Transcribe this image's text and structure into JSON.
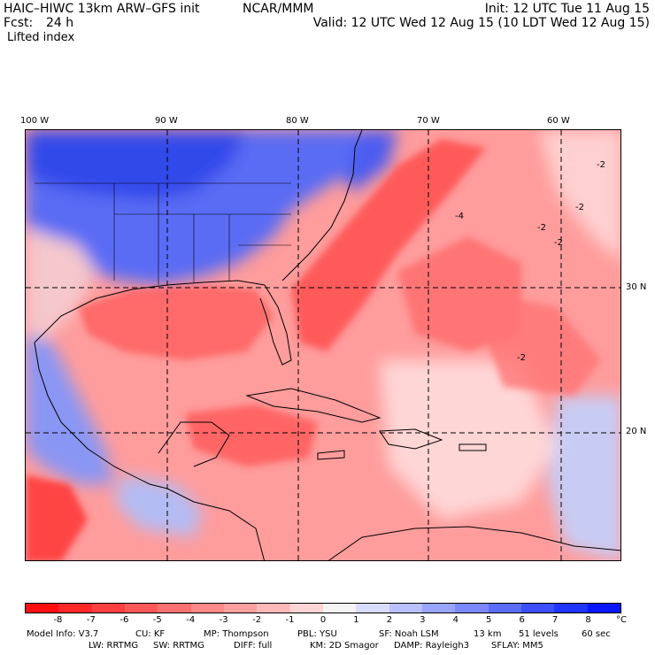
{
  "header": {
    "model_title": "HAIC–HIWC 13km ARW–GFS init",
    "org": "NCAR/MMM",
    "init": "Init: 12 UTC Tue 11 Aug 15",
    "fcst_label": "Fcst:",
    "fcst_value": "24 h",
    "valid": "Valid: 12 UTC Wed 12 Aug 15 (10 LDT Wed 12 Aug 15)",
    "field_name": "Lifted index"
  },
  "map": {
    "region": "Gulf of Mexico, Caribbean, western Atlantic",
    "lon_labels": [
      "100 W",
      "90 W",
      "80 W",
      "70 W",
      "60 W"
    ],
    "lat_labels": [
      "30 N",
      "20 N"
    ],
    "contour_labels": [
      "-2",
      "-2",
      "-2",
      "-2",
      "-2",
      "-4"
    ]
  },
  "colorbar": {
    "unit": "°C",
    "tick_labels": [
      "-8",
      "-7",
      "-6",
      "-5",
      "-4",
      "-3",
      "-2",
      "-1",
      "0",
      "1",
      "2",
      "3",
      "4",
      "5",
      "6",
      "7",
      "8"
    ],
    "colors": [
      "#ff1010",
      "#ff2828",
      "#ff4040",
      "#ff5858",
      "#ff7070",
      "#ff8888",
      "#ffa0a0",
      "#ffb8b8",
      "#ffd4d4",
      "#f4f4f4",
      "#d8dcff",
      "#b8c0ff",
      "#98a4ff",
      "#7c88ff",
      "#5c6cff",
      "#3c50ff",
      "#2034ff",
      "#0818ff"
    ]
  },
  "footer": {
    "line1": [
      "Model Info: V3.7",
      "CU: KF",
      "MP: Thompson",
      "PBL: YSU",
      "SF: Noah LSM",
      "13 km",
      "51 levels",
      "60 sec"
    ],
    "line2": [
      "LW: RRTMG",
      "SW: RRTMG",
      "DIFF: full",
      "KM: 2D Smagor",
      "DAMP: Rayleigh3",
      "SFLAY: MM5"
    ]
  }
}
